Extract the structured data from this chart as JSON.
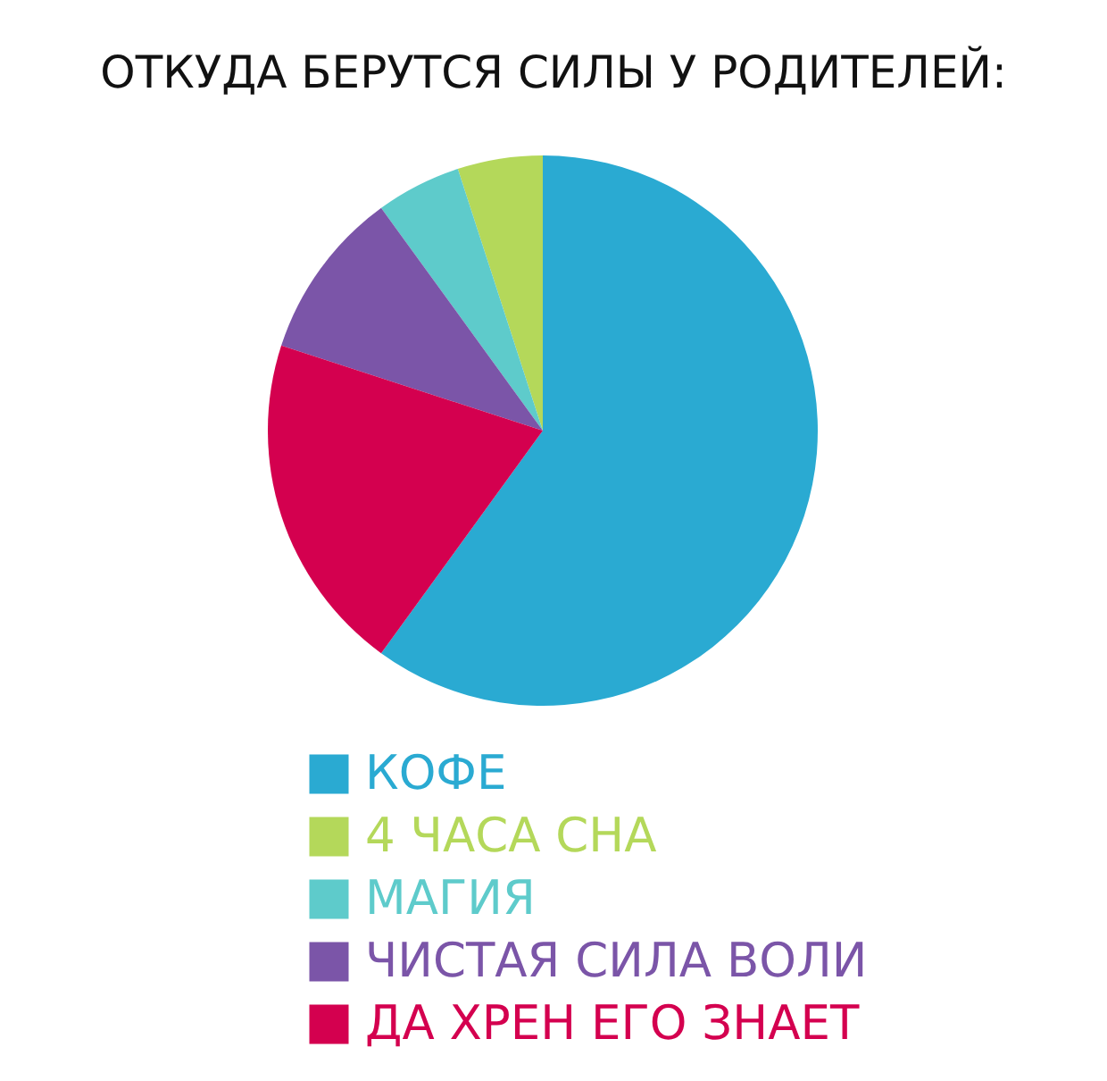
{
  "chart_data": {
    "type": "pie",
    "title": "ОТКУДА БЕРУТСЯ СИЛЫ У РОДИТЕЛЕЙ:",
    "categories": [
      "КОФЕ",
      "4 ЧАСА СНА",
      "МАГИЯ",
      "ЧИСТАЯ СИЛА ВОЛИ",
      "ДА ХРЕН ЕГО ЗНАЕТ"
    ],
    "values": [
      60,
      5,
      5,
      10,
      20
    ],
    "colors": [
      "#2aaad2",
      "#b4d85a",
      "#5ecbcb",
      "#7b55a8",
      "#d4004f"
    ],
    "legend": "bottom"
  }
}
